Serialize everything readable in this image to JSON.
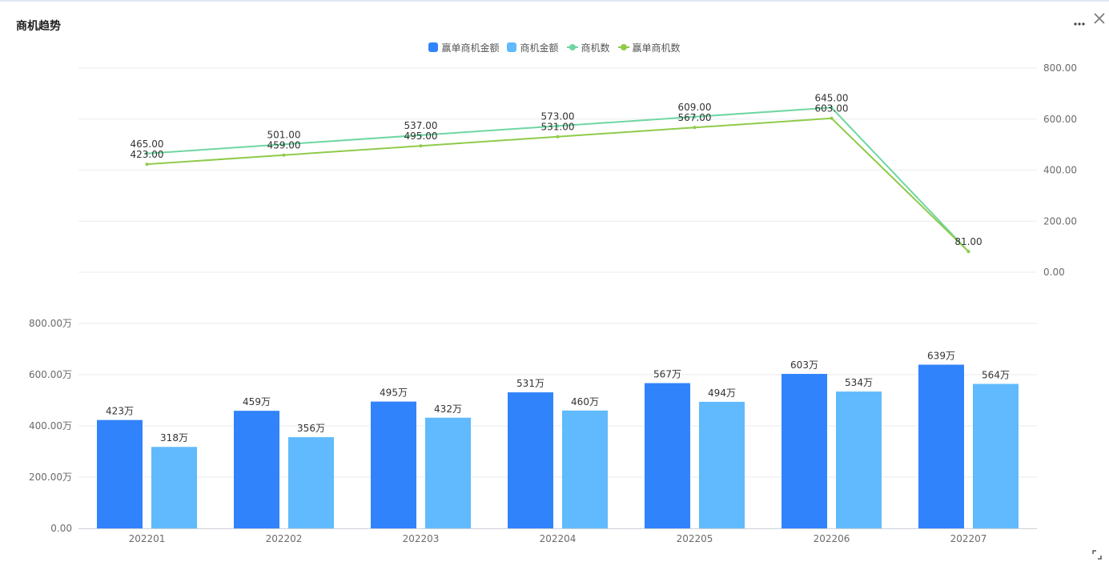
{
  "header": {
    "title": "商机趋势"
  },
  "colors": {
    "won_amount": "#3183fc",
    "opp_amount": "#60bafd",
    "opp_count": "#6fd6a2",
    "won_count": "#8fcb4a",
    "grid": "#e8ebf0"
  },
  "icons": [
    "more-icon",
    "close-icon",
    "resize-icon"
  ],
  "chart_data": {
    "type": "bar+line",
    "categories": [
      "202201",
      "202202",
      "202203",
      "202204",
      "202205",
      "202206",
      "202207"
    ],
    "legend": {
      "position": "top-center",
      "items": [
        "赢单商机金额",
        "商机金额",
        "商机数",
        "赢单商机数"
      ]
    },
    "bar_series": [
      {
        "name": "赢单商机金额",
        "values": [
          423,
          459,
          495,
          531,
          567,
          603,
          639
        ],
        "labels": [
          "423万",
          "459万",
          "495万",
          "531万",
          "567万",
          "603万",
          "639万"
        ]
      },
      {
        "name": "商机金额",
        "values": [
          318,
          356,
          432,
          460,
          494,
          534,
          564
        ],
        "labels": [
          "318万",
          "356万",
          "432万",
          "460万",
          "494万",
          "534万",
          "564万"
        ]
      }
    ],
    "line_series": [
      {
        "name": "商机数",
        "values": [
          465,
          501,
          537,
          573,
          609,
          645,
          81
        ],
        "labels": [
          "465.00",
          "501.00",
          "537.00",
          "573.00",
          "609.00",
          "645.00",
          "81.00"
        ]
      },
      {
        "name": "赢单商机数",
        "values": [
          423,
          459,
          495,
          531,
          567,
          603,
          81
        ],
        "labels": [
          "423.00",
          "459.00",
          "495.00",
          "531.00",
          "567.00",
          "603.00",
          ""
        ]
      }
    ],
    "bar_axis": {
      "range": [
        0,
        800
      ],
      "ticks": [
        "0.00",
        "200.00万",
        "400.00万",
        "600.00万",
        "800.00万"
      ]
    },
    "line_axis": {
      "range": [
        0,
        800
      ],
      "ticks": [
        "0.00",
        "200.00",
        "400.00",
        "600.00",
        "800.00"
      ]
    },
    "grid": true
  }
}
